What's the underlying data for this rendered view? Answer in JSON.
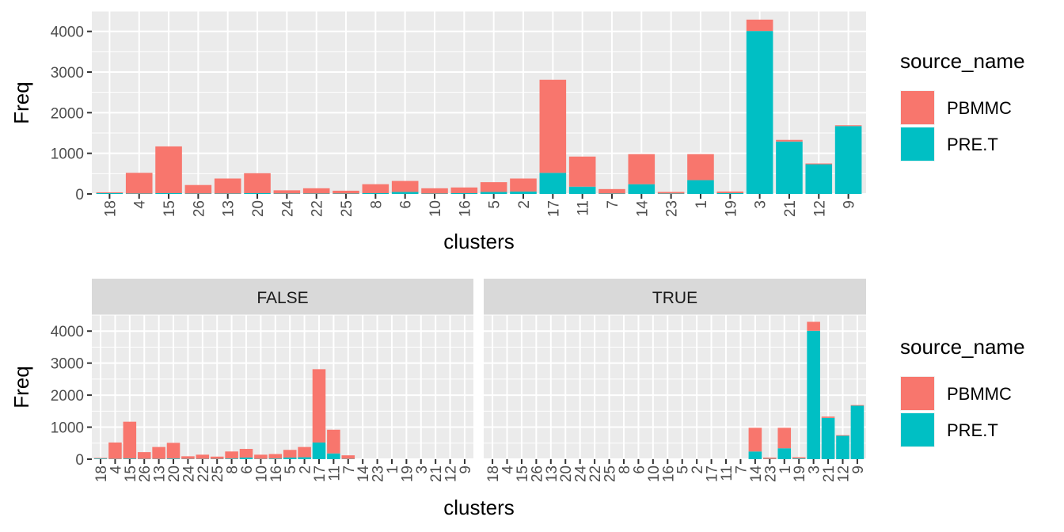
{
  "chart_data": [
    {
      "type": "bar",
      "stacked": true,
      "xlabel": "clusters",
      "ylabel": "Freq",
      "ylim": [
        0,
        4500
      ],
      "yticks": [
        0,
        1000,
        2000,
        3000,
        4000
      ],
      "categories": [
        "18",
        "4",
        "15",
        "26",
        "13",
        "20",
        "24",
        "22",
        "25",
        "8",
        "6",
        "10",
        "16",
        "5",
        "2",
        "17",
        "11",
        "7",
        "14",
        "23",
        "1",
        "19",
        "3",
        "21",
        "12",
        "9"
      ],
      "series": [
        {
          "name": "PBMMC",
          "values": [
            20,
            510,
            1150,
            210,
            370,
            490,
            80,
            130,
            70,
            220,
            270,
            130,
            140,
            240,
            320,
            2290,
            740,
            110,
            740,
            40,
            640,
            40,
            280,
            40,
            20,
            20
          ]
        },
        {
          "name": "PRE.T",
          "values": [
            20,
            10,
            20,
            10,
            10,
            20,
            10,
            10,
            10,
            20,
            50,
            10,
            20,
            50,
            60,
            520,
            180,
            10,
            240,
            10,
            340,
            20,
            4010,
            1290,
            730,
            1670
          ]
        }
      ],
      "legend": {
        "title": "source_name",
        "position": "right",
        "entries": [
          "PBMMC",
          "PRE.T"
        ]
      },
      "colors": {
        "PBMMC": "#F8766D",
        "PRE.T": "#00BFC4"
      }
    },
    {
      "type": "bar",
      "stacked": true,
      "xlabel": "clusters",
      "ylabel": "Freq",
      "ylim": [
        0,
        4500
      ],
      "yticks": [
        0,
        1000,
        2000,
        3000,
        4000
      ],
      "categories": [
        "18",
        "4",
        "15",
        "26",
        "13",
        "20",
        "24",
        "22",
        "25",
        "8",
        "6",
        "10",
        "16",
        "5",
        "2",
        "17",
        "11",
        "7",
        "14",
        "23",
        "1",
        "19",
        "3",
        "21",
        "12",
        "9"
      ],
      "facets": [
        {
          "label": "FALSE",
          "series": [
            {
              "name": "PBMMC",
              "values": [
                20,
                510,
                1150,
                210,
                370,
                490,
                80,
                130,
                70,
                220,
                270,
                130,
                140,
                240,
                320,
                2290,
                740,
                110,
                0,
                0,
                0,
                0,
                0,
                0,
                0,
                0
              ]
            },
            {
              "name": "PRE.T",
              "values": [
                20,
                10,
                20,
                10,
                10,
                20,
                10,
                10,
                10,
                20,
                50,
                10,
                20,
                50,
                60,
                520,
                180,
                10,
                0,
                0,
                0,
                0,
                0,
                0,
                0,
                0
              ]
            }
          ]
        },
        {
          "label": "TRUE",
          "series": [
            {
              "name": "PBMMC",
              "values": [
                0,
                0,
                0,
                0,
                0,
                0,
                0,
                0,
                0,
                0,
                0,
                0,
                0,
                0,
                0,
                0,
                0,
                0,
                740,
                40,
                640,
                40,
                280,
                40,
                20,
                20
              ]
            },
            {
              "name": "PRE.T",
              "values": [
                0,
                0,
                0,
                0,
                0,
                0,
                0,
                0,
                0,
                0,
                0,
                0,
                0,
                0,
                0,
                0,
                0,
                0,
                240,
                10,
                340,
                20,
                4010,
                1290,
                730,
                1670
              ]
            }
          ]
        }
      ],
      "legend": {
        "title": "source_name",
        "position": "right",
        "entries": [
          "PBMMC",
          "PRE.T"
        ]
      },
      "colors": {
        "PBMMC": "#F8766D",
        "PRE.T": "#00BFC4"
      }
    }
  ]
}
